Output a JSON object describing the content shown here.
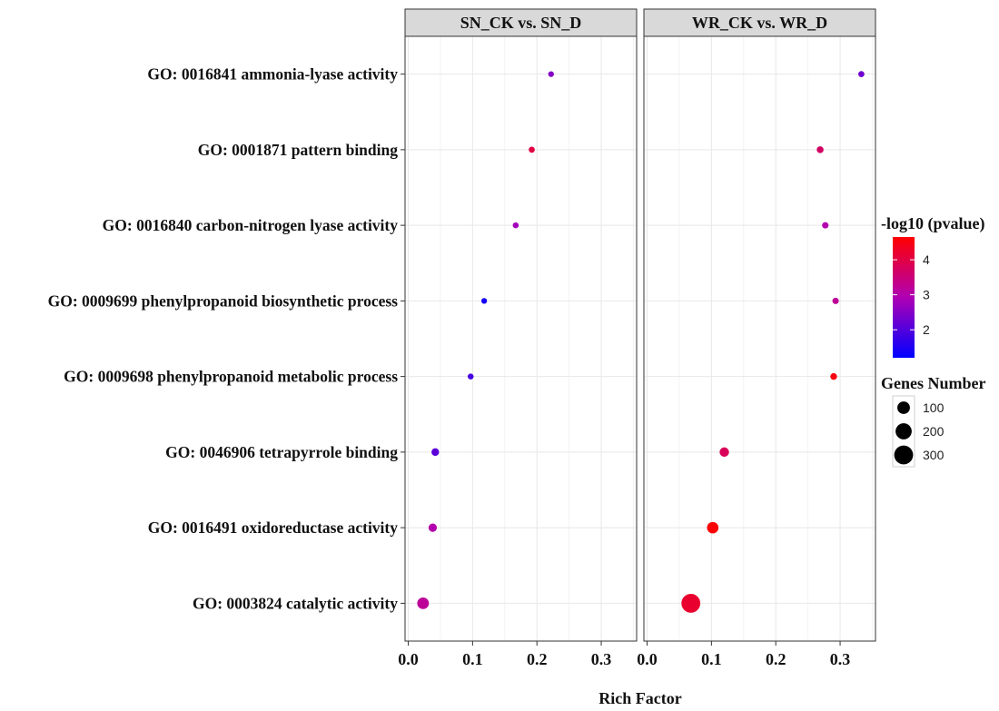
{
  "chart_data": {
    "type": "scatter",
    "xlabel": "Rich Factor",
    "x_ticks": [
      0.0,
      0.1,
      0.2,
      0.3
    ],
    "x_tick_labels": [
      "0.0",
      "0.1",
      "0.2",
      "0.3"
    ],
    "xlim": [
      -0.005,
      0.355
    ],
    "categories": [
      "GO: 0016841 ammonia-lyase activity",
      "GO: 0001871 pattern binding",
      "GO: 0016840 carbon-nitrogen lyase activity",
      "GO: 0009699 phenylpropanoid biosynthetic process",
      "GO: 0009698 phenylpropanoid metabolic process",
      "GO: 0046906 tetrapyrrole binding",
      "GO: 0016491 oxidoreductase activity",
      "GO: 0003824 catalytic activity"
    ],
    "panels": [
      {
        "title": "SN_CK vs. SN_D",
        "points": [
          {
            "category": "GO: 0016841 ammonia-lyase activity",
            "rich_factor": 0.222,
            "neg_log10_p": 2.5,
            "genes": 4
          },
          {
            "category": "GO: 0001871 pattern binding",
            "rich_factor": 0.192,
            "neg_log10_p": 4.0,
            "genes": 6
          },
          {
            "category": "GO: 0016840 carbon-nitrogen lyase activity",
            "rich_factor": 0.167,
            "neg_log10_p": 2.8,
            "genes": 5
          },
          {
            "category": "GO: 0009699 phenylpropanoid biosynthetic process",
            "rich_factor": 0.118,
            "neg_log10_p": 1.4,
            "genes": 4
          },
          {
            "category": "GO: 0009698 phenylpropanoid metabolic process",
            "rich_factor": 0.097,
            "neg_log10_p": 1.9,
            "genes": 5
          },
          {
            "category": "GO: 0046906 tetrapyrrole binding",
            "rich_factor": 0.042,
            "neg_log10_p": 2.1,
            "genes": 18
          },
          {
            "category": "GO: 0016491 oxidoreductase activity",
            "rich_factor": 0.038,
            "neg_log10_p": 3.0,
            "genes": 25
          },
          {
            "category": "GO: 0003824 catalytic activity",
            "rich_factor": 0.023,
            "neg_log10_p": 3.2,
            "genes": 80
          }
        ]
      },
      {
        "title": "WR_CK vs. WR_D",
        "points": [
          {
            "category": "GO: 0016841 ammonia-lyase activity",
            "rich_factor": 0.333,
            "neg_log10_p": 2.3,
            "genes": 6
          },
          {
            "category": "GO: 0001871 pattern binding",
            "rich_factor": 0.269,
            "neg_log10_p": 3.7,
            "genes": 11
          },
          {
            "category": "GO: 0016840 carbon-nitrogen lyase activity",
            "rich_factor": 0.277,
            "neg_log10_p": 3.0,
            "genes": 8
          },
          {
            "category": "GO: 0009699 phenylpropanoid biosynthetic process",
            "rich_factor": 0.293,
            "neg_log10_p": 3.2,
            "genes": 8
          },
          {
            "category": "GO: 0009698 phenylpropanoid metabolic process",
            "rich_factor": 0.29,
            "neg_log10_p": 4.5,
            "genes": 10
          },
          {
            "category": "GO: 0046906 tetrapyrrole binding",
            "rich_factor": 0.12,
            "neg_log10_p": 3.8,
            "genes": 40
          },
          {
            "category": "GO: 0016491 oxidoreductase activity",
            "rich_factor": 0.102,
            "neg_log10_p": 4.6,
            "genes": 75
          },
          {
            "category": "GO: 0003824 catalytic activity",
            "rich_factor": 0.068,
            "neg_log10_p": 4.2,
            "genes": 300
          }
        ]
      }
    ],
    "color_legend": {
      "title": "-log10 (pvalue)",
      "range": [
        1.2,
        4.65
      ],
      "ticks": [
        2,
        3,
        4
      ],
      "tick_labels": [
        "2",
        "3",
        "4"
      ],
      "low_color": "#0000ff",
      "high_color": "#ff0000"
    },
    "size_legend": {
      "title": "Genes Number",
      "values": [
        100,
        200,
        300
      ],
      "labels": [
        "100",
        "200",
        "300"
      ]
    },
    "panel_background": "#ffffff",
    "panel_border": "#333333",
    "strip_fill": "#d9d9d9",
    "grid_color": "#ebebeb",
    "grid": true,
    "legend_position": "right"
  }
}
